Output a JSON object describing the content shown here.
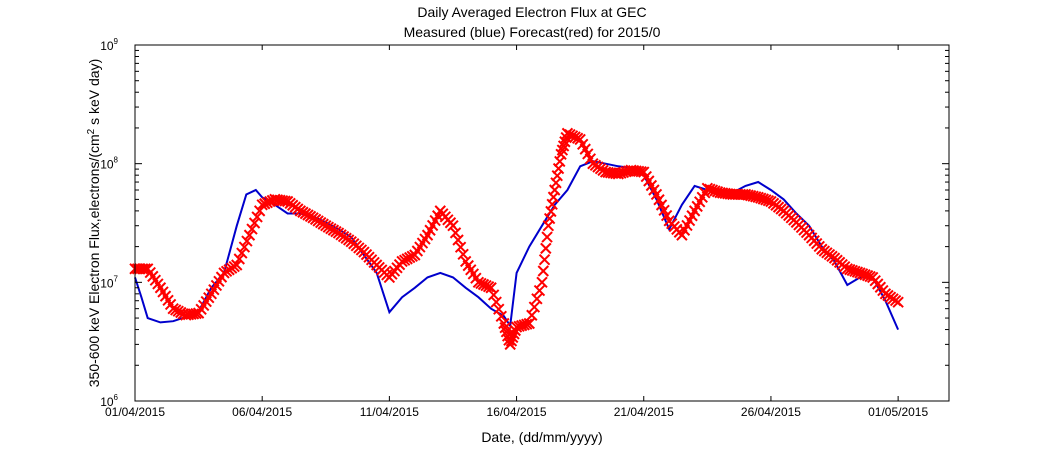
{
  "chart_data": {
    "type": "line",
    "title_line1": "Daily Averaged Electron Flux at GEC",
    "title_line2": "Measured (blue) Forecast(red) for 2015/0",
    "xlabel": "Date, (dd/mm/yyyy)",
    "ylabel": "350-600 keV Electron Flux,electrons/(cm",
    "ylabel_sup": "2",
    "ylabel_tail": " s keV day)",
    "y_scale": "log",
    "ylim": [
      1000000,
      1000000000
    ],
    "y_ticks": [
      {
        "value": 1000000,
        "base": "10",
        "exp": "6"
      },
      {
        "value": 10000000,
        "base": "10",
        "exp": "7"
      },
      {
        "value": 100000000,
        "base": "10",
        "exp": "8"
      },
      {
        "value": 1000000000,
        "base": "10",
        "exp": "9"
      }
    ],
    "xlim": [
      "2015-04-01",
      "2015-05-03"
    ],
    "x_ticks": [
      {
        "date": "2015-04-01",
        "label": "01/04/2015"
      },
      {
        "date": "2015-04-06",
        "label": "06/04/2015"
      },
      {
        "date": "2015-04-11",
        "label": "11/04/2015"
      },
      {
        "date": "2015-04-16",
        "label": "16/04/2015"
      },
      {
        "date": "2015-04-21",
        "label": "21/04/2015"
      },
      {
        "date": "2015-04-26",
        "label": "26/04/2015"
      },
      {
        "date": "2015-05-01",
        "label": "01/05/2015"
      }
    ],
    "grid": false,
    "series": [
      {
        "style": "line",
        "color": "#0000cc",
        "points": [
          [
            "2015-04-01 00:00",
            11000000
          ],
          [
            "2015-04-01 06:00",
            7500000
          ],
          [
            "2015-04-01 12:00",
            5000000
          ],
          [
            "2015-04-02 00:00",
            4600000
          ],
          [
            "2015-04-02 12:00",
            4700000
          ],
          [
            "2015-04-03 00:00",
            5100000
          ],
          [
            "2015-04-03 12:00",
            5700000
          ],
          [
            "2015-04-04 00:00",
            9000000
          ],
          [
            "2015-04-04 12:00",
            12000000
          ],
          [
            "2015-04-05 00:00",
            30000000
          ],
          [
            "2015-04-05 09:00",
            55000000
          ],
          [
            "2015-04-05 18:00",
            60000000
          ],
          [
            "2015-04-06 00:00",
            52000000
          ],
          [
            "2015-04-06 12:00",
            45000000
          ],
          [
            "2015-04-07 00:00",
            38000000
          ],
          [
            "2015-04-07 12:00",
            38000000
          ],
          [
            "2015-04-08 00:00",
            36000000
          ],
          [
            "2015-04-08 12:00",
            32000000
          ],
          [
            "2015-04-09 00:00",
            28000000
          ],
          [
            "2015-04-09 12:00",
            24000000
          ],
          [
            "2015-04-10 00:00",
            17000000
          ],
          [
            "2015-04-10 12:00",
            12000000
          ],
          [
            "2015-04-11 00:00",
            5600000
          ],
          [
            "2015-04-11 12:00",
            7500000
          ],
          [
            "2015-04-12 00:00",
            9000000
          ],
          [
            "2015-04-12 12:00",
            11000000
          ],
          [
            "2015-04-13 00:00",
            12000000
          ],
          [
            "2015-04-13 12:00",
            11000000
          ],
          [
            "2015-04-14 00:00",
            9000000
          ],
          [
            "2015-04-14 12:00",
            7500000
          ],
          [
            "2015-04-15 00:00",
            6000000
          ],
          [
            "2015-04-15 12:00",
            5200000
          ],
          [
            "2015-04-15 18:00",
            4300000
          ],
          [
            "2015-04-16 00:00",
            12000000
          ],
          [
            "2015-04-16 12:00",
            20000000
          ],
          [
            "2015-04-17 00:00",
            30000000
          ],
          [
            "2015-04-17 12:00",
            45000000
          ],
          [
            "2015-04-18 00:00",
            60000000
          ],
          [
            "2015-04-18 12:00",
            95000000
          ],
          [
            "2015-04-19 00:00",
            105000000
          ],
          [
            "2015-04-19 12:00",
            100000000
          ],
          [
            "2015-04-20 00:00",
            95000000
          ],
          [
            "2015-04-20 12:00",
            92000000
          ],
          [
            "2015-04-21 00:00",
            80000000
          ],
          [
            "2015-04-21 12:00",
            50000000
          ],
          [
            "2015-04-22 00:00",
            28000000
          ],
          [
            "2015-04-22 12:00",
            45000000
          ],
          [
            "2015-04-23 00:00",
            65000000
          ],
          [
            "2015-04-23 12:00",
            60000000
          ],
          [
            "2015-04-24 00:00",
            55000000
          ],
          [
            "2015-04-24 12:00",
            57000000
          ],
          [
            "2015-04-25 00:00",
            65000000
          ],
          [
            "2015-04-25 12:00",
            70000000
          ],
          [
            "2015-04-26 00:00",
            60000000
          ],
          [
            "2015-04-26 12:00",
            50000000
          ],
          [
            "2015-04-27 00:00",
            38000000
          ],
          [
            "2015-04-27 12:00",
            30000000
          ],
          [
            "2015-04-28 00:00",
            20000000
          ],
          [
            "2015-04-28 12:00",
            15000000
          ],
          [
            "2015-04-29 00:00",
            9500000
          ],
          [
            "2015-04-29 12:00",
            11000000
          ],
          [
            "2015-04-30 00:00",
            11000000
          ],
          [
            "2015-04-30 12:00",
            7000000
          ],
          [
            "2015-05-01 00:00",
            4000000
          ]
        ]
      },
      {
        "style": "markers",
        "marker": "x",
        "color": "#ff0000",
        "points": [
          [
            "2015-04-01 00:00",
            13000000
          ],
          [
            "2015-04-01 12:00",
            13000000
          ],
          [
            "2015-04-02 00:00",
            9000000
          ],
          [
            "2015-04-02 12:00",
            6000000
          ],
          [
            "2015-04-03 00:00",
            5300000
          ],
          [
            "2015-04-03 12:00",
            5500000
          ],
          [
            "2015-04-04 00:00",
            8000000
          ],
          [
            "2015-04-04 12:00",
            12000000
          ],
          [
            "2015-04-05 00:00",
            14000000
          ],
          [
            "2015-04-05 12:00",
            25000000
          ],
          [
            "2015-04-06 00:00",
            45000000
          ],
          [
            "2015-04-06 12:00",
            50000000
          ],
          [
            "2015-04-07 00:00",
            48000000
          ],
          [
            "2015-04-07 12:00",
            40000000
          ],
          [
            "2015-04-08 00:00",
            35000000
          ],
          [
            "2015-04-08 12:00",
            30000000
          ],
          [
            "2015-04-09 00:00",
            26000000
          ],
          [
            "2015-04-09 12:00",
            22000000
          ],
          [
            "2015-04-10 00:00",
            18000000
          ],
          [
            "2015-04-10 12:00",
            14000000
          ],
          [
            "2015-04-11 00:00",
            11000000
          ],
          [
            "2015-04-11 12:00",
            15000000
          ],
          [
            "2015-04-12 00:00",
            17000000
          ],
          [
            "2015-04-12 12:00",
            25000000
          ],
          [
            "2015-04-13 00:00",
            40000000
          ],
          [
            "2015-04-13 12:00",
            30000000
          ],
          [
            "2015-04-14 00:00",
            15000000
          ],
          [
            "2015-04-14 12:00",
            10000000
          ],
          [
            "2015-04-15 00:00",
            9000000
          ],
          [
            "2015-04-15 12:00",
            4500000
          ],
          [
            "2015-04-15 18:00",
            3000000
          ],
          [
            "2015-04-16 00:00",
            4200000
          ],
          [
            "2015-04-16 12:00",
            4500000
          ],
          [
            "2015-04-17 00:00",
            10000000
          ],
          [
            "2015-04-17 06:00",
            30000000
          ],
          [
            "2015-04-17 12:00",
            60000000
          ],
          [
            "2015-04-17 18:00",
            120000000
          ],
          [
            "2015-04-18 00:00",
            180000000
          ],
          [
            "2015-04-18 12:00",
            160000000
          ],
          [
            "2015-04-19 00:00",
            100000000
          ],
          [
            "2015-04-19 12:00",
            85000000
          ],
          [
            "2015-04-20 00:00",
            82000000
          ],
          [
            "2015-04-20 12:00",
            88000000
          ],
          [
            "2015-04-21 00:00",
            85000000
          ],
          [
            "2015-04-21 12:00",
            55000000
          ],
          [
            "2015-04-22 00:00",
            33000000
          ],
          [
            "2015-04-22 12:00",
            25000000
          ],
          [
            "2015-04-23 00:00",
            40000000
          ],
          [
            "2015-04-23 12:00",
            62000000
          ],
          [
            "2015-04-24 00:00",
            57000000
          ],
          [
            "2015-04-24 12:00",
            55000000
          ],
          [
            "2015-04-25 00:00",
            55000000
          ],
          [
            "2015-04-25 12:00",
            52000000
          ],
          [
            "2015-04-26 00:00",
            48000000
          ],
          [
            "2015-04-26 12:00",
            40000000
          ],
          [
            "2015-04-27 00:00",
            32000000
          ],
          [
            "2015-04-27 12:00",
            25000000
          ],
          [
            "2015-04-28 00:00",
            19000000
          ],
          [
            "2015-04-28 12:00",
            16000000
          ],
          [
            "2015-04-29 00:00",
            13000000
          ],
          [
            "2015-04-29 12:00",
            12000000
          ],
          [
            "2015-04-30 00:00",
            11000000
          ],
          [
            "2015-04-30 12:00",
            8000000
          ],
          [
            "2015-05-01 00:00",
            6800000
          ]
        ]
      }
    ]
  }
}
